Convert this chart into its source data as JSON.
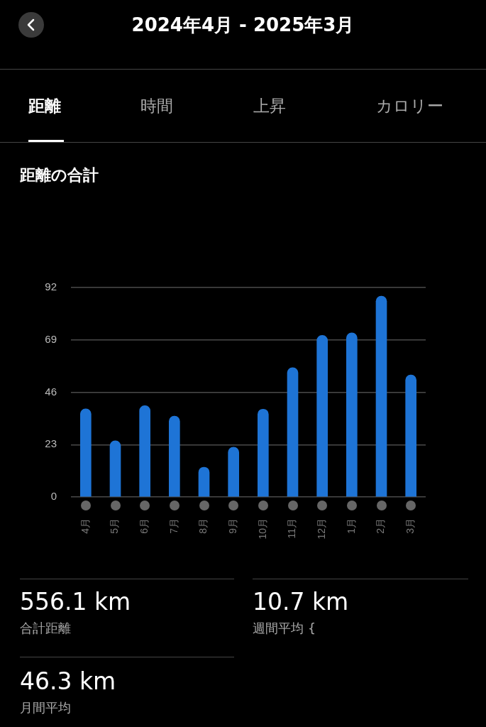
{
  "chart_data": {
    "type": "bar",
    "title": "2024年4月 - 2025年3月",
    "subtitle": "距離の合計",
    "categories": [
      "4月",
      "5月",
      "6月",
      "7月",
      "8月",
      "9月",
      "10月",
      "11月",
      "12月",
      "1月",
      "2月",
      "3月"
    ],
    "values": [
      38.7,
      24.7,
      40.1,
      35.5,
      13.1,
      21.9,
      38.6,
      56.8,
      71.0,
      72.1,
      88.2,
      53.6
    ],
    "color": "#1e74d6",
    "ylim": [
      0,
      92
    ],
    "yticks": [
      0,
      23,
      46,
      69,
      92
    ],
    "grid": "y",
    "legend": false,
    "annotations": [
      "距離",
      "時間",
      "上昇",
      "カロリー",
      "556.1 km",
      "合計距離",
      "10.7 km",
      "週間平均 {",
      "46.3 km",
      "月間平均"
    ]
  }
}
